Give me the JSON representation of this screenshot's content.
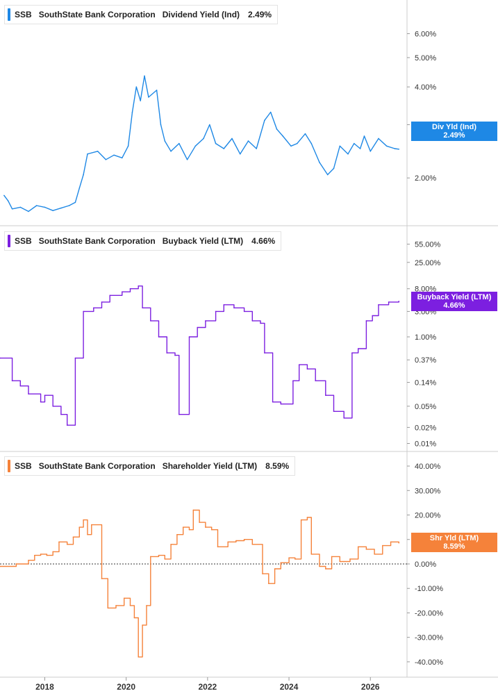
{
  "chart_data": [
    {
      "type": "line",
      "ticker": "SSB",
      "company": "SouthState Bank Corporation",
      "metric": "Dividend Yield (Ind)",
      "current_value": "2.49%",
      "flag_label": "Div Yld (Ind)",
      "color": "#1e88e5",
      "scale": "log",
      "y_ticks": [
        "6.00%",
        "5.00%",
        "4.00%",
        "3.00%",
        "2.00%"
      ],
      "y_tick_values": [
        6,
        5,
        4,
        3,
        2
      ],
      "ylim": [
        1.45,
        7.2
      ],
      "points": [
        [
          2017.0,
          1.75
        ],
        [
          2017.1,
          1.68
        ],
        [
          2017.2,
          1.58
        ],
        [
          2017.4,
          1.6
        ],
        [
          2017.6,
          1.55
        ],
        [
          2017.8,
          1.62
        ],
        [
          2018.0,
          1.6
        ],
        [
          2018.2,
          1.56
        ],
        [
          2018.4,
          1.59
        ],
        [
          2018.6,
          1.62
        ],
        [
          2018.75,
          1.66
        ],
        [
          2018.85,
          1.85
        ],
        [
          2018.95,
          2.05
        ],
        [
          2019.05,
          2.4
        ],
        [
          2019.3,
          2.45
        ],
        [
          2019.5,
          2.3
        ],
        [
          2019.7,
          2.38
        ],
        [
          2019.9,
          2.33
        ],
        [
          2020.05,
          2.55
        ],
        [
          2020.15,
          3.3
        ],
        [
          2020.25,
          4.0
        ],
        [
          2020.35,
          3.6
        ],
        [
          2020.45,
          4.35
        ],
        [
          2020.55,
          3.7
        ],
        [
          2020.75,
          3.9
        ],
        [
          2020.85,
          3.0
        ],
        [
          2020.95,
          2.65
        ],
        [
          2021.1,
          2.45
        ],
        [
          2021.3,
          2.6
        ],
        [
          2021.5,
          2.3
        ],
        [
          2021.7,
          2.55
        ],
        [
          2021.9,
          2.7
        ],
        [
          2022.05,
          3.0
        ],
        [
          2022.2,
          2.6
        ],
        [
          2022.4,
          2.5
        ],
        [
          2022.6,
          2.7
        ],
        [
          2022.8,
          2.4
        ],
        [
          2023.0,
          2.65
        ],
        [
          2023.2,
          2.5
        ],
        [
          2023.4,
          3.1
        ],
        [
          2023.55,
          3.3
        ],
        [
          2023.7,
          2.9
        ],
        [
          2023.85,
          2.75
        ],
        [
          2024.05,
          2.55
        ],
        [
          2024.2,
          2.6
        ],
        [
          2024.4,
          2.8
        ],
        [
          2024.55,
          2.6
        ],
        [
          2024.75,
          2.25
        ],
        [
          2024.95,
          2.05
        ],
        [
          2025.1,
          2.15
        ],
        [
          2025.25,
          2.55
        ],
        [
          2025.45,
          2.4
        ],
        [
          2025.6,
          2.6
        ],
        [
          2025.75,
          2.5
        ],
        [
          2025.85,
          2.75
        ],
        [
          2026.0,
          2.45
        ],
        [
          2026.2,
          2.7
        ],
        [
          2026.4,
          2.55
        ],
        [
          2026.6,
          2.5
        ],
        [
          2026.7,
          2.49
        ]
      ]
    },
    {
      "type": "line",
      "ticker": "SSB",
      "company": "SouthState Bank Corporation",
      "metric": "Buyback Yield (LTM)",
      "current_value": "4.66%",
      "flag_label": "Buyback Yield (LTM)",
      "color": "#7c1fe0",
      "scale": "log",
      "y_ticks": [
        "55.00%",
        "25.00%",
        "8.00%",
        "3.00%",
        "1.00%",
        "0.37%",
        "0.14%",
        "0.05%",
        "0.02%",
        "0.01%"
      ],
      "y_tick_values": [
        55,
        25,
        8,
        3,
        1,
        0.37,
        0.14,
        0.05,
        0.02,
        0.01
      ],
      "ylim": [
        0.009,
        80
      ],
      "step": true,
      "points": [
        [
          2016.9,
          0.4
        ],
        [
          2017.2,
          0.15
        ],
        [
          2017.4,
          0.12
        ],
        [
          2017.6,
          0.085
        ],
        [
          2017.9,
          0.06
        ],
        [
          2018.0,
          0.08
        ],
        [
          2018.2,
          0.05
        ],
        [
          2018.4,
          0.035
        ],
        [
          2018.55,
          0.022
        ],
        [
          2018.75,
          0.4
        ],
        [
          2018.95,
          3.0
        ],
        [
          2019.2,
          3.5
        ],
        [
          2019.4,
          4.5
        ],
        [
          2019.6,
          6.0
        ],
        [
          2019.9,
          7.0
        ],
        [
          2020.1,
          8.0
        ],
        [
          2020.3,
          9.0
        ],
        [
          2020.4,
          3.5
        ],
        [
          2020.6,
          2.0
        ],
        [
          2020.8,
          1.0
        ],
        [
          2021.0,
          0.5
        ],
        [
          2021.2,
          0.45
        ],
        [
          2021.3,
          0.035
        ],
        [
          2021.55,
          1.0
        ],
        [
          2021.75,
          1.5
        ],
        [
          2021.95,
          2.0
        ],
        [
          2022.2,
          3.0
        ],
        [
          2022.4,
          4.0
        ],
        [
          2022.65,
          3.5
        ],
        [
          2022.9,
          3.0
        ],
        [
          2023.1,
          2.0
        ],
        [
          2023.3,
          1.8
        ],
        [
          2023.4,
          0.5
        ],
        [
          2023.6,
          0.06
        ],
        [
          2023.8,
          0.055
        ],
        [
          2024.1,
          0.15
        ],
        [
          2024.25,
          0.3
        ],
        [
          2024.45,
          0.25
        ],
        [
          2024.65,
          0.15
        ],
        [
          2024.9,
          0.08
        ],
        [
          2025.1,
          0.04
        ],
        [
          2025.35,
          0.03
        ],
        [
          2025.55,
          0.5
        ],
        [
          2025.7,
          0.6
        ],
        [
          2025.9,
          2.0
        ],
        [
          2026.05,
          2.5
        ],
        [
          2026.2,
          4.0
        ],
        [
          2026.45,
          4.5
        ],
        [
          2026.7,
          4.66
        ]
      ]
    },
    {
      "type": "line",
      "ticker": "SSB",
      "company": "SouthState Bank Corporation",
      "metric": "Shareholder Yield (LTM)",
      "current_value": "8.59%",
      "flag_label": "Shr Yld (LTM)",
      "color": "#f5823a",
      "scale": "linear",
      "y_ticks": [
        "40.00%",
        "30.00%",
        "20.00%",
        "10.00%",
        "0.00%",
        "-10.00%",
        "-20.00%",
        "-30.00%",
        "-40.00%"
      ],
      "y_tick_values": [
        40,
        30,
        20,
        10,
        0,
        -10,
        -20,
        -30,
        -40
      ],
      "ylim": [
        -44,
        42
      ],
      "zero_line": true,
      "step": true,
      "points": [
        [
          2016.9,
          -1.0
        ],
        [
          2017.3,
          0.0
        ],
        [
          2017.6,
          1.5
        ],
        [
          2017.75,
          3.5
        ],
        [
          2017.9,
          4.0
        ],
        [
          2018.05,
          3.5
        ],
        [
          2018.2,
          5.0
        ],
        [
          2018.35,
          9.0
        ],
        [
          2018.55,
          8.0
        ],
        [
          2018.7,
          11.0
        ],
        [
          2018.85,
          15.0
        ],
        [
          2018.95,
          18.0
        ],
        [
          2019.05,
          12.0
        ],
        [
          2019.15,
          16.0
        ],
        [
          2019.4,
          -6.0
        ],
        [
          2019.55,
          -18.0
        ],
        [
          2019.75,
          -17.0
        ],
        [
          2019.95,
          -14.0
        ],
        [
          2020.1,
          -17.0
        ],
        [
          2020.2,
          -22.0
        ],
        [
          2020.3,
          -38.0
        ],
        [
          2020.4,
          -25.0
        ],
        [
          2020.5,
          -17.0
        ],
        [
          2020.6,
          3.0
        ],
        [
          2020.8,
          3.5
        ],
        [
          2020.95,
          2.0
        ],
        [
          2021.1,
          8.0
        ],
        [
          2021.25,
          12.0
        ],
        [
          2021.4,
          15.0
        ],
        [
          2021.55,
          14.0
        ],
        [
          2021.65,
          22.0
        ],
        [
          2021.8,
          17.0
        ],
        [
          2021.95,
          15.0
        ],
        [
          2022.1,
          14.0
        ],
        [
          2022.25,
          7.0
        ],
        [
          2022.5,
          9.0
        ],
        [
          2022.7,
          9.5
        ],
        [
          2022.9,
          10.0
        ],
        [
          2023.1,
          8.0
        ],
        [
          2023.35,
          -4.0
        ],
        [
          2023.5,
          -8.0
        ],
        [
          2023.65,
          -2.0
        ],
        [
          2023.8,
          0.5
        ],
        [
          2024.0,
          2.5
        ],
        [
          2024.15,
          2.0
        ],
        [
          2024.3,
          18.0
        ],
        [
          2024.45,
          19.0
        ],
        [
          2024.55,
          4.0
        ],
        [
          2024.75,
          -1.0
        ],
        [
          2024.9,
          -2.0
        ],
        [
          2025.05,
          3.0
        ],
        [
          2025.25,
          1.0
        ],
        [
          2025.5,
          2.0
        ],
        [
          2025.7,
          7.0
        ],
        [
          2025.9,
          6.0
        ],
        [
          2026.1,
          4.0
        ],
        [
          2026.3,
          7.5
        ],
        [
          2026.5,
          9.0
        ],
        [
          2026.7,
          8.59
        ]
      ]
    }
  ],
  "x_ticks": [
    "2018",
    "2020",
    "2022",
    "2024",
    "2026"
  ],
  "x_tick_values": [
    2018,
    2020,
    2022,
    2024,
    2026
  ],
  "x_range": [
    2016.9,
    2026.9
  ]
}
